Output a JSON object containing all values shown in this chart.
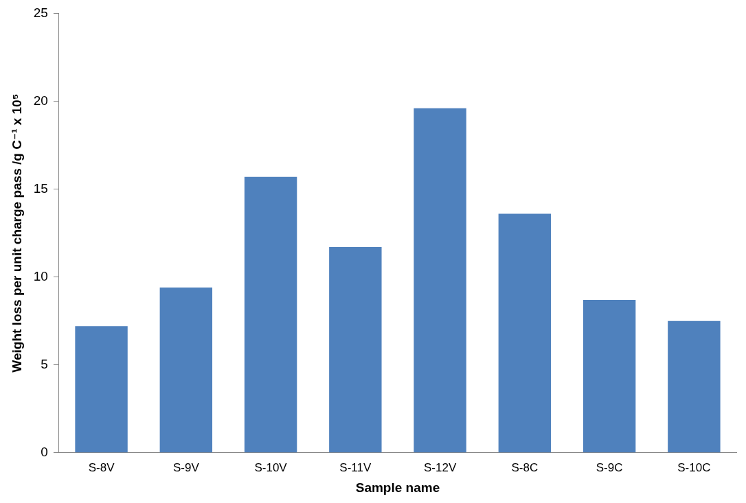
{
  "chart_data": {
    "type": "bar",
    "xlabel": "Sample name",
    "ylabel": "Weight loss per unit charge pass /g C⁻¹ x 10⁵",
    "categories": [
      "S-8V",
      "S-9V",
      "S-10V",
      "S-11V",
      "S-12V",
      "S-8C",
      "S-9C",
      "S-10C"
    ],
    "values": [
      7.2,
      9.4,
      15.7,
      11.7,
      19.6,
      13.6,
      8.7,
      7.5
    ],
    "color": "#4f81bd",
    "ylim": [
      0,
      25
    ],
    "yticks": [
      0,
      5,
      10,
      15,
      20,
      25
    ],
    "grid": false,
    "legend": false
  }
}
